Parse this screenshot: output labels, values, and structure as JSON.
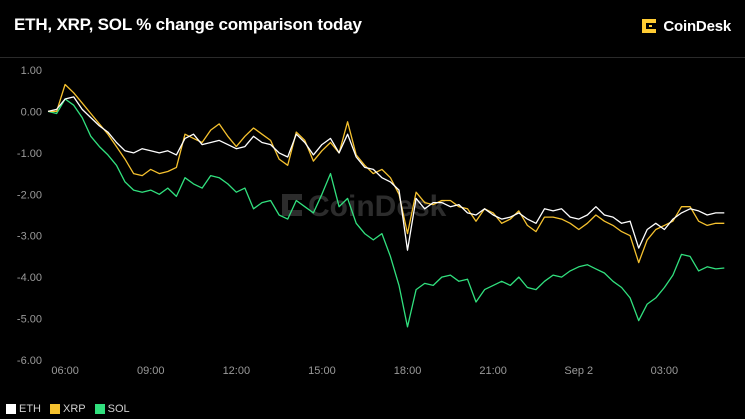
{
  "header": {
    "title": "ETH, XRP, SOL % change comparison today",
    "brand": "CoinDesk",
    "brand_icon": "coindesk-logo-icon"
  },
  "watermark": "CoinDesk",
  "colors": {
    "background": "#000000",
    "ETH": "#ffffff",
    "XRP": "#f5c12e",
    "SOL": "#31e07e",
    "grid": "#2a2a2a",
    "brand": "#ffcc33"
  },
  "chart_data": {
    "type": "line",
    "title": "ETH, XRP, SOL % change comparison today",
    "xlabel": "",
    "ylabel": "",
    "x_ticks": [
      "06:00",
      "09:00",
      "12:00",
      "15:00",
      "18:00",
      "21:00",
      "Sep 2",
      "03:00"
    ],
    "x_tick_hours": [
      6,
      9,
      12,
      15,
      18,
      21,
      24,
      27
    ],
    "x_range_hours": [
      5.4,
      29.3
    ],
    "ylim": [
      -6,
      1
    ],
    "y_ticks": [
      "1.00",
      "0.00",
      "-1.00",
      "-2.00",
      "-3.00",
      "-4.00",
      "-5.00",
      "-6.00"
    ],
    "y_tick_values": [
      1,
      0,
      -1,
      -2,
      -3,
      -4,
      -5,
      -6
    ],
    "grid": false,
    "legend_position": "bottom-left",
    "x_hours": [
      5.4,
      5.7,
      6.0,
      6.3,
      6.6,
      6.9,
      7.2,
      7.5,
      7.8,
      8.1,
      8.4,
      8.7,
      9.0,
      9.3,
      9.6,
      9.9,
      10.2,
      10.5,
      10.8,
      11.1,
      11.4,
      11.7,
      12.0,
      12.3,
      12.6,
      12.9,
      13.2,
      13.5,
      13.8,
      14.1,
      14.4,
      14.7,
      15.0,
      15.3,
      15.6,
      15.9,
      16.2,
      16.5,
      16.8,
      17.1,
      17.4,
      17.7,
      18.0,
      18.3,
      18.6,
      18.9,
      19.2,
      19.5,
      19.8,
      20.1,
      20.4,
      20.7,
      21.0,
      21.3,
      21.6,
      21.9,
      22.2,
      22.5,
      22.8,
      23.1,
      23.4,
      23.7,
      24.0,
      24.3,
      24.6,
      24.9,
      25.2,
      25.5,
      25.8,
      26.1,
      26.4,
      26.7,
      27.0,
      27.3,
      27.6,
      27.9,
      28.2,
      28.5,
      28.8,
      29.1
    ],
    "series": [
      {
        "name": "ETH",
        "values": [
          0.0,
          0.05,
          0.3,
          0.35,
          0.05,
          -0.15,
          -0.35,
          -0.5,
          -0.75,
          -0.95,
          -1.0,
          -0.9,
          -0.95,
          -1.0,
          -0.95,
          -1.05,
          -0.65,
          -0.55,
          -0.8,
          -0.75,
          -0.7,
          -0.8,
          -0.9,
          -0.85,
          -0.6,
          -0.75,
          -0.8,
          -1.0,
          -1.1,
          -0.55,
          -0.75,
          -1.05,
          -0.8,
          -0.65,
          -1.0,
          -0.55,
          -1.1,
          -1.35,
          -1.4,
          -1.6,
          -1.7,
          -1.9,
          -3.35,
          -2.1,
          -2.35,
          -2.2,
          -2.2,
          -2.3,
          -2.25,
          -2.45,
          -2.5,
          -2.35,
          -2.5,
          -2.6,
          -2.55,
          -2.45,
          -2.6,
          -2.7,
          -2.35,
          -2.4,
          -2.35,
          -2.55,
          -2.6,
          -2.5,
          -2.3,
          -2.5,
          -2.55,
          -2.7,
          -2.65,
          -3.3,
          -2.85,
          -2.7,
          -2.85,
          -2.6,
          -2.45,
          -2.35,
          -2.4,
          -2.5,
          -2.45,
          -2.45
        ]
      },
      {
        "name": "XRP",
        "values": [
          0.0,
          0.0,
          0.65,
          0.45,
          0.2,
          -0.05,
          -0.3,
          -0.55,
          -0.85,
          -1.15,
          -1.5,
          -1.55,
          -1.4,
          -1.5,
          -1.45,
          -1.35,
          -0.55,
          -0.65,
          -0.75,
          -0.45,
          -0.3,
          -0.6,
          -0.85,
          -0.6,
          -0.4,
          -0.55,
          -0.7,
          -1.15,
          -1.3,
          -0.5,
          -0.7,
          -1.2,
          -0.95,
          -0.75,
          -1.0,
          -0.25,
          -1.05,
          -1.3,
          -1.5,
          -1.4,
          -1.6,
          -2.0,
          -2.95,
          -1.95,
          -2.2,
          -2.25,
          -2.15,
          -2.15,
          -2.3,
          -2.35,
          -2.65,
          -2.35,
          -2.45,
          -2.7,
          -2.6,
          -2.4,
          -2.75,
          -2.9,
          -2.55,
          -2.55,
          -2.6,
          -2.7,
          -2.85,
          -2.7,
          -2.5,
          -2.65,
          -2.75,
          -2.9,
          -3.0,
          -3.65,
          -3.1,
          -2.85,
          -2.75,
          -2.65,
          -2.3,
          -2.3,
          -2.65,
          -2.75,
          -2.7,
          -2.7
        ]
      },
      {
        "name": "SOL",
        "values": [
          0.0,
          -0.05,
          0.3,
          0.15,
          -0.15,
          -0.6,
          -0.85,
          -1.05,
          -1.3,
          -1.7,
          -1.9,
          -1.95,
          -1.9,
          -2.0,
          -1.85,
          -2.05,
          -1.6,
          -1.75,
          -1.85,
          -1.55,
          -1.6,
          -1.75,
          -1.95,
          -1.85,
          -2.35,
          -2.2,
          -2.15,
          -2.5,
          -2.6,
          -2.15,
          -2.3,
          -2.45,
          -2.0,
          -1.5,
          -2.3,
          -2.1,
          -2.7,
          -2.95,
          -3.1,
          -2.95,
          -3.5,
          -4.2,
          -5.2,
          -4.3,
          -4.15,
          -4.2,
          -4.0,
          -3.95,
          -4.1,
          -4.05,
          -4.6,
          -4.3,
          -4.2,
          -4.1,
          -4.2,
          -4.0,
          -4.25,
          -4.3,
          -4.1,
          -3.95,
          -4.0,
          -3.85,
          -3.75,
          -3.7,
          -3.8,
          -3.9,
          -4.1,
          -4.25,
          -4.5,
          -5.05,
          -4.65,
          -4.5,
          -4.25,
          -3.95,
          -3.45,
          -3.5,
          -3.85,
          -3.75,
          -3.8,
          -3.78
        ]
      }
    ]
  }
}
